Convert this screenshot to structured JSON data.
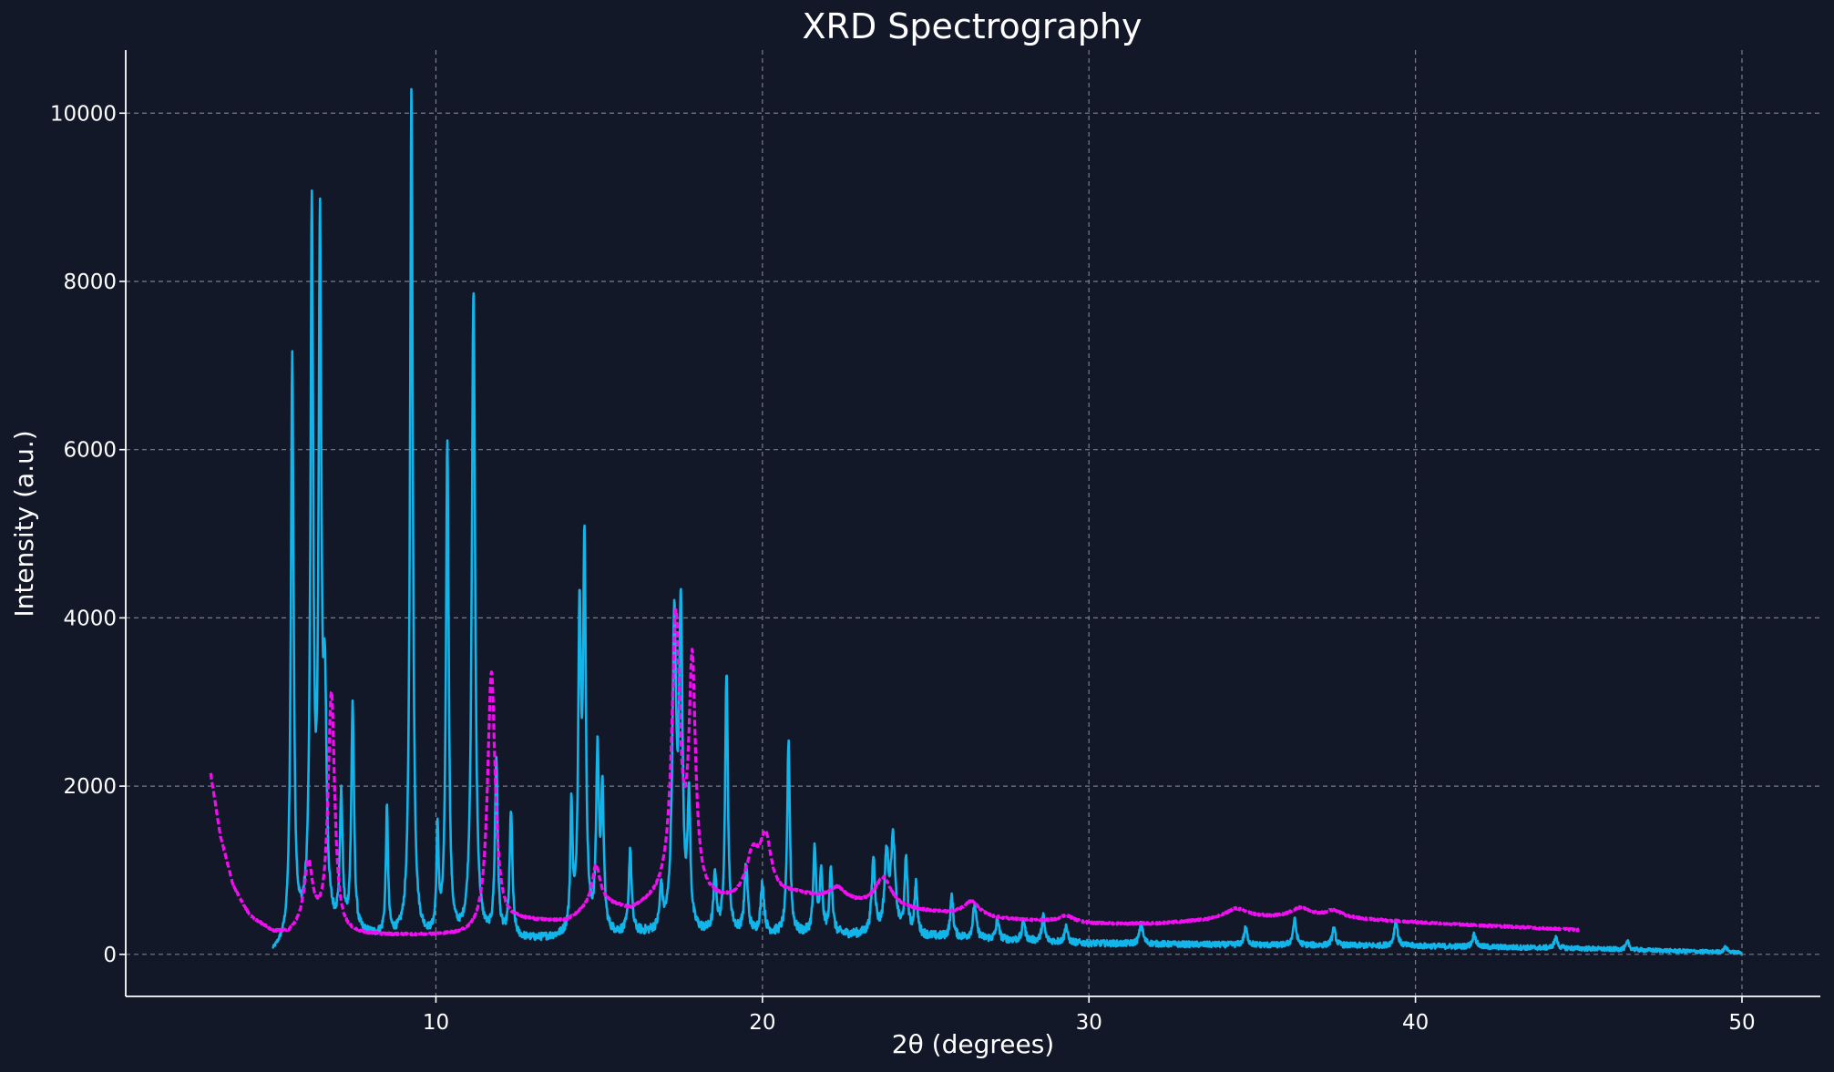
{
  "chart_data": {
    "type": "line",
    "title": "XRD Spectrography",
    "xlabel": "2θ (degrees)",
    "ylabel": "Intensity (a.u.)",
    "xlim": [
      0.5,
      52.4
    ],
    "ylim": [
      -500,
      10750
    ],
    "xticks": [
      10,
      20,
      30,
      40,
      50
    ],
    "yticks": [
      0,
      2000,
      4000,
      6000,
      8000,
      10000
    ],
    "grid": true,
    "legend": "none",
    "colors": {
      "background": "#131829",
      "series_a": "#12b5ea",
      "series_b": "#f00ff0"
    },
    "series": [
      {
        "color": "#12b5ea",
        "style": "solid",
        "x_range": [
          5,
          50
        ],
        "baseline": [
          [
            5,
            0
          ],
          [
            6,
            250
          ],
          [
            8,
            200
          ],
          [
            10,
            150
          ],
          [
            13,
            170
          ],
          [
            16,
            230
          ],
          [
            19,
            230
          ],
          [
            22,
            230
          ],
          [
            25,
            210
          ],
          [
            30,
            130
          ],
          [
            35,
            110
          ],
          [
            40,
            100
          ],
          [
            45,
            70
          ],
          [
            50,
            20
          ]
        ],
        "peaks": [
          [
            5.6,
            6900,
            0.05
          ],
          [
            6.2,
            8400,
            0.05
          ],
          [
            6.45,
            8000,
            0.05
          ],
          [
            6.6,
            2500,
            0.06
          ],
          [
            7.1,
            1550,
            0.05
          ],
          [
            7.45,
            2700,
            0.05
          ],
          [
            8.5,
            1500,
            0.04
          ],
          [
            9.25,
            10100,
            0.05
          ],
          [
            10.05,
            1200,
            0.04
          ],
          [
            10.35,
            5900,
            0.05
          ],
          [
            11.15,
            7700,
            0.06
          ],
          [
            11.85,
            2100,
            0.05
          ],
          [
            12.3,
            1500,
            0.05
          ],
          [
            14.15,
            1500,
            0.04
          ],
          [
            14.4,
            3700,
            0.05
          ],
          [
            14.55,
            4500,
            0.05
          ],
          [
            14.95,
            2100,
            0.05
          ],
          [
            15.1,
            1600,
            0.05
          ],
          [
            15.95,
            1000,
            0.05
          ],
          [
            16.9,
            500,
            0.05
          ],
          [
            17.3,
            3600,
            0.07
          ],
          [
            17.5,
            3700,
            0.06
          ],
          [
            17.75,
            1500,
            0.05
          ],
          [
            18.55,
            700,
            0.05
          ],
          [
            18.9,
            3100,
            0.05
          ],
          [
            19.5,
            800,
            0.06
          ],
          [
            20.0,
            600,
            0.06
          ],
          [
            20.8,
            2300,
            0.05
          ],
          [
            21.6,
            1000,
            0.05
          ],
          [
            21.8,
            700,
            0.05
          ],
          [
            22.1,
            800,
            0.05
          ],
          [
            23.4,
            900,
            0.06
          ],
          [
            23.8,
            900,
            0.07
          ],
          [
            24.0,
            1100,
            0.08
          ],
          [
            24.4,
            900,
            0.05
          ],
          [
            24.7,
            600,
            0.05
          ],
          [
            25.8,
            500,
            0.05
          ],
          [
            26.5,
            400,
            0.06
          ],
          [
            27.2,
            250,
            0.05
          ],
          [
            28.0,
            250,
            0.05
          ],
          [
            28.6,
            300,
            0.05
          ],
          [
            29.3,
            200,
            0.05
          ],
          [
            31.6,
            250,
            0.06
          ],
          [
            34.8,
            200,
            0.06
          ],
          [
            36.3,
            300,
            0.06
          ],
          [
            37.5,
            200,
            0.06
          ],
          [
            39.4,
            300,
            0.06
          ],
          [
            41.8,
            150,
            0.06
          ],
          [
            44.3,
            120,
            0.06
          ],
          [
            46.5,
            90,
            0.06
          ],
          [
            49.5,
            60,
            0.06
          ]
        ]
      },
      {
        "color": "#f00ff0",
        "style": "dashed",
        "x_range": [
          3.1,
          45.0
        ],
        "baseline": [
          [
            3.1,
            2150
          ],
          [
            3.4,
            1400
          ],
          [
            3.8,
            800
          ],
          [
            4.3,
            450
          ],
          [
            5,
            260
          ],
          [
            5.5,
            230
          ],
          [
            6,
            350
          ],
          [
            7,
            220
          ],
          [
            9,
            220
          ],
          [
            11,
            220
          ],
          [
            12.5,
            380
          ],
          [
            14,
            380
          ],
          [
            15,
            600
          ],
          [
            16,
            500
          ],
          [
            17,
            650
          ],
          [
            19,
            600
          ],
          [
            21,
            700
          ],
          [
            23,
            580
          ],
          [
            25,
            500
          ],
          [
            27,
            420
          ],
          [
            30,
            360
          ],
          [
            32,
            360
          ],
          [
            35,
            430
          ],
          [
            38,
            420
          ],
          [
            41,
            360
          ],
          [
            45,
            290
          ]
        ],
        "peaks": [
          [
            6.1,
            700,
            0.15
          ],
          [
            6.8,
            2850,
            0.12
          ],
          [
            11.7,
            3050,
            0.14
          ],
          [
            14.9,
            450,
            0.15
          ],
          [
            17.35,
            3300,
            0.15
          ],
          [
            17.85,
            2700,
            0.12
          ],
          [
            19.7,
            500,
            0.25
          ],
          [
            20.1,
            650,
            0.2
          ],
          [
            22.3,
            150,
            0.3
          ],
          [
            23.7,
            350,
            0.3
          ],
          [
            26.4,
            180,
            0.3
          ],
          [
            29.3,
            80,
            0.3
          ],
          [
            34.5,
            120,
            0.4
          ],
          [
            36.5,
            120,
            0.4
          ],
          [
            37.5,
            90,
            0.3
          ]
        ]
      }
    ]
  }
}
